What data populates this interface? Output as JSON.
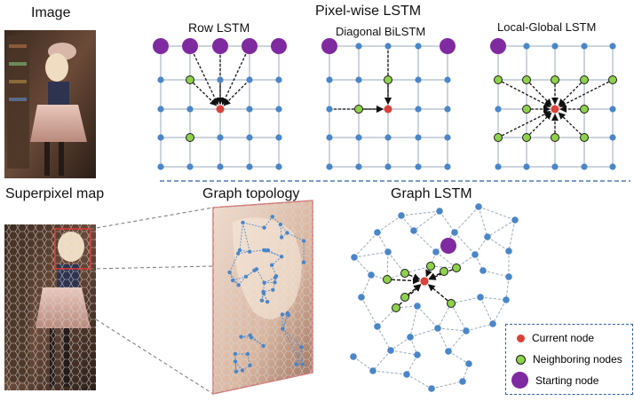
{
  "labels": {
    "image": "Image",
    "pixelwise": "Pixel-wise LSTM",
    "row": "Row LSTM",
    "diagonal": "Diagonal BiLSTM",
    "localglobal": "Local-Global LSTM",
    "superpixel": "Superpixel map",
    "graph_topology": "Graph topology",
    "graph_lstm": "Graph LSTM"
  },
  "legend": {
    "current": "Current node",
    "neighboring": "Neighboring nodes",
    "starting": "Starting node"
  },
  "colors": {
    "grid_node": "#4a86c8",
    "grid_line": "#9aa9bb",
    "current_node": "#d9423a",
    "neighbor_node": "#8ed14b",
    "start_node": "#7f2aa0",
    "separator": "#2b5fa8",
    "arrow": "#111111"
  }
}
